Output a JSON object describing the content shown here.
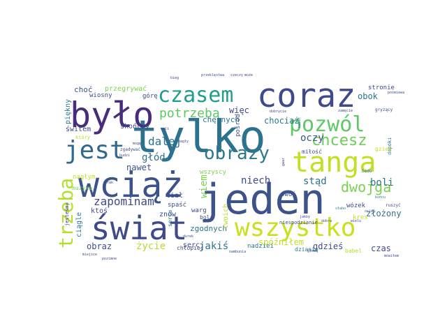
{
  "words": [
    {
      "text": "jeden",
      "color": "#3b528b"
    },
    {
      "text": "tylko",
      "color": "#2c728e"
    },
    {
      "text": "było",
      "color": "#472d7b"
    },
    {
      "text": "coraz",
      "color": "#3e4a89"
    },
    {
      "text": "wciąż",
      "color": "#3b528b"
    },
    {
      "text": "świat",
      "color": "#3e4a89"
    },
    {
      "text": "tanga",
      "color": "#c2df23"
    },
    {
      "text": "wszystko",
      "color": "#c8e020"
    },
    {
      "text": "pozwól",
      "color": "#5ec962"
    },
    {
      "text": "jest",
      "color": "#31688e"
    },
    {
      "text": "czasem",
      "color": "#1f9e89"
    },
    {
      "text": "obrazy",
      "color": "#2a788e"
    },
    {
      "text": "chcesz",
      "color": "#6ccd5a"
    },
    {
      "text": "trzeba",
      "color": "#b5de2b"
    },
    {
      "text": "dwojga",
      "color": "#7ad151"
    },
    {
      "text": "zapominam",
      "color": "#3e4a89"
    },
    {
      "text": "potrzeba",
      "color": "#5ec962"
    },
    {
      "text": "dalej",
      "color": "#2c728e"
    },
    {
      "text": "głód",
      "color": "#2c728e"
    },
    {
      "text": "niech",
      "color": "#3e4a89"
    },
    {
      "text": "stąd",
      "color": "#2c728e"
    },
    {
      "text": "boli",
      "color": "#2c728e"
    },
    {
      "text": "oczy",
      "color": "#3b528b"
    },
    {
      "text": "nawet",
      "color": "#3b528b"
    },
    {
      "text": "obok",
      "color": "#2c728e"
    },
    {
      "text": "więc",
      "color": "#3e4a89"
    },
    {
      "text": "chociaż",
      "color": "#2a788e"
    },
    {
      "text": "obraz",
      "color": "#3e4a89"
    },
    {
      "text": "życie",
      "color": "#b5de2b"
    },
    {
      "text": "jakiś",
      "color": "#2c728e"
    },
    {
      "text": "czas",
      "color": "#3e4a89"
    },
    {
      "text": "gdzieś",
      "color": "#3e4a89"
    },
    {
      "text": "złożony",
      "color": "#2c728e"
    },
    {
      "text": "spóźniłem",
      "color": "#c2df23"
    },
    {
      "text": "zgodnych",
      "color": "#2c728e"
    },
    {
      "text": "wiem",
      "color": "#7ad151"
    },
    {
      "text": "choć",
      "color": "#3b528b"
    },
    {
      "text": "przegrywać",
      "color": "#7ad151"
    },
    {
      "text": "chętnych",
      "color": "#2a788e"
    },
    {
      "text": "skończy",
      "color": "#3e4a89"
    },
    {
      "text": "świtem",
      "color": "#3e4a89"
    },
    {
      "text": "wiosny",
      "color": "#3e4a89"
    },
    {
      "text": "piękny",
      "color": "#2a788e"
    },
    {
      "text": "ciągle",
      "color": "#2a788e"
    },
    {
      "text": "serc",
      "color": "#3e4a89"
    },
    {
      "text": "znów",
      "color": "#3e4a89"
    },
    {
      "text": "ciał",
      "color": "#3e4a89"
    },
    {
      "text": "ktoś",
      "color": "#3e4a89"
    },
    {
      "text": "warg",
      "color": "#3e4a89"
    },
    {
      "text": "spaść",
      "color": "#3e4a89"
    },
    {
      "text": "stronie",
      "color": "#3e4a89"
    },
    {
      "text": "górę",
      "color": "#3e4a89"
    },
    {
      "text": "pośród",
      "color": "#3e4a89"
    },
    {
      "text": "wszyscy",
      "color": "#7ad151"
    },
    {
      "text": "nadziei",
      "color": "#2a788e"
    },
    {
      "text": "swój",
      "color": "#3e4a89"
    },
    {
      "text": "wózek",
      "color": "#3e4a89"
    },
    {
      "text": "kres",
      "color": "#c2df23"
    },
    {
      "text": "twoich",
      "color": "#b5de2b"
    },
    {
      "text": "chłopiec",
      "color": "#3e4a89"
    },
    {
      "text": "dzianie",
      "color": "#2a788e"
    },
    {
      "text": "babel",
      "color": "#b5de2b"
    },
    {
      "text": "bolą",
      "color": "#3e4a89"
    },
    {
      "text": "sercu",
      "color": "#2a788e"
    },
    {
      "text": "nagłym",
      "color": "#c2df23"
    },
    {
      "text": "muzyka",
      "color": "#7ad151"
    },
    {
      "text": "jesteśmy",
      "color": "#3e4a89"
    },
    {
      "text": "który",
      "color": "#b5de2b"
    },
    {
      "text": "miłość",
      "color": "#3e4a89"
    },
    {
      "text": "zgadywać",
      "color": "#3e4a89"
    },
    {
      "text": "niespodzianie",
      "color": "#3e4a89"
    },
    {
      "text": "kwiat",
      "color": "#2a788e"
    },
    {
      "text": "dopóki",
      "color": "#2a788e"
    },
    {
      "text": "gryzący",
      "color": "#3e4a89"
    },
    {
      "text": "zamęcie",
      "color": "#3e4a89"
    },
    {
      "text": "dobrycie",
      "color": "#3e4a89"
    },
    {
      "text": "przeklęstwa",
      "color": "#3e4a89"
    },
    {
      "text": "czeczy",
      "color": "#3e4a89"
    },
    {
      "text": "może",
      "color": "#3e4a89"
    },
    {
      "text": "końcu",
      "color": "#2a788e"
    },
    {
      "text": "gzieś",
      "color": "#c2df23"
    },
    {
      "text": "jakby",
      "color": "#3e4a89"
    },
    {
      "text": "słabo",
      "color": "#2a788e"
    },
    {
      "text": "wielu",
      "color": "#3e4a89"
    },
    {
      "text": "bede",
      "color": "#2a788e"
    },
    {
      "text": "głową",
      "color": "#3e4a89"
    },
    {
      "text": "ruszyć",
      "color": "#3e4a89"
    },
    {
      "text": "mówiłem",
      "color": "#3e4a89"
    },
    {
      "text": "pośmiewa",
      "color": "#3e4a89"
    },
    {
      "text": "drak",
      "color": "#3e4a89"
    },
    {
      "text": "mogę",
      "color": "#3e4a89"
    },
    {
      "text": "sali",
      "color": "#3e4a89"
    },
    {
      "text": "nagły",
      "color": "#3e4a89"
    },
    {
      "text": "durek",
      "color": "#3e4a89"
    },
    {
      "text": "miejsce",
      "color": "#3e4a89"
    },
    {
      "text": "nambunia",
      "color": "#3e4a89"
    },
    {
      "text": "osień",
      "color": "#3e4a89"
    },
    {
      "text": "dobra",
      "color": "#3e4a89"
    },
    {
      "text": "gwar",
      "color": "#3e4a89"
    },
    {
      "text": "budzi",
      "color": "#3e4a89"
    },
    {
      "text": "bieg",
      "color": "#3e4a89"
    },
    {
      "text": "pozimne",
      "color": "#3e4a89"
    }
  ]
}
